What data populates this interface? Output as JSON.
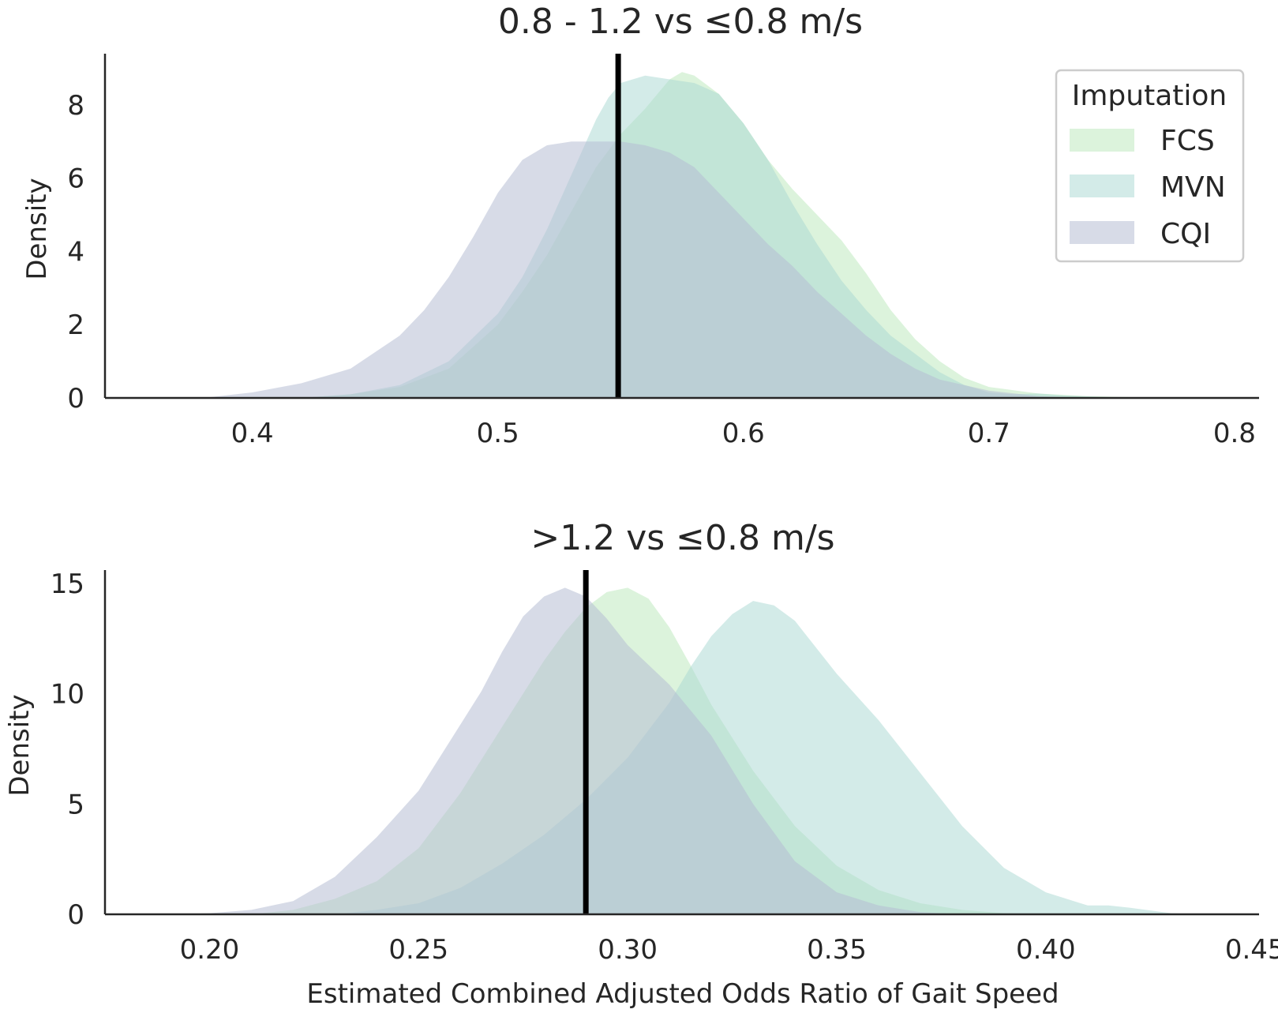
{
  "chart_data": [
    {
      "type": "area",
      "title": "0.8 - 1.2 vs ≤0.8 m/s",
      "xlabel": "",
      "ylabel": "Density",
      "xlim": [
        0.34,
        0.81
      ],
      "ylim": [
        0,
        9.4
      ],
      "xticks": [
        0.4,
        0.5,
        0.6,
        0.7,
        0.8
      ],
      "xtick_labels": [
        "0.4",
        "0.5",
        "0.6",
        "0.7",
        "0.8"
      ],
      "yticks": [
        0,
        2,
        4,
        6,
        8
      ],
      "ytick_labels": [
        "0",
        "2",
        "4",
        "6",
        "8"
      ],
      "reference_line_x": 0.549,
      "legend": {
        "title": "Imputation",
        "position": "top-right"
      },
      "series": [
        {
          "name": "FCS",
          "color": "#bfeabf",
          "opacity": 0.55,
          "x": [
            0.42,
            0.44,
            0.46,
            0.48,
            0.5,
            0.51,
            0.52,
            0.53,
            0.54,
            0.55,
            0.56,
            0.57,
            0.575,
            0.58,
            0.59,
            0.6,
            0.61,
            0.62,
            0.63,
            0.64,
            0.65,
            0.66,
            0.67,
            0.68,
            0.69,
            0.7,
            0.72,
            0.74,
            0.76,
            0.78
          ],
          "y": [
            0,
            0.1,
            0.3,
            0.8,
            2.0,
            2.9,
            3.9,
            5.1,
            6.3,
            7.2,
            7.9,
            8.7,
            8.9,
            8.8,
            8.3,
            7.5,
            6.5,
            5.7,
            5.0,
            4.3,
            3.4,
            2.4,
            1.6,
            1.0,
            0.55,
            0.3,
            0.12,
            0.05,
            0.02,
            0
          ]
        },
        {
          "name": "MVN",
          "color": "#a8d8d1",
          "opacity": 0.5,
          "x": [
            0.42,
            0.44,
            0.46,
            0.48,
            0.5,
            0.51,
            0.52,
            0.53,
            0.54,
            0.545,
            0.55,
            0.56,
            0.57,
            0.58,
            0.59,
            0.6,
            0.61,
            0.62,
            0.63,
            0.64,
            0.65,
            0.66,
            0.67,
            0.68,
            0.69,
            0.7,
            0.71,
            0.72,
            0.73,
            0.75,
            0.77
          ],
          "y": [
            0,
            0.1,
            0.35,
            1.0,
            2.3,
            3.3,
            4.6,
            6.1,
            7.6,
            8.2,
            8.6,
            8.8,
            8.7,
            8.6,
            8.3,
            7.5,
            6.5,
            5.3,
            4.2,
            3.2,
            2.4,
            1.7,
            1.2,
            0.7,
            0.35,
            0.15,
            0.1,
            0.12,
            0.07,
            0.02,
            0
          ]
        },
        {
          "name": "CQI",
          "color": "#b7bed4",
          "opacity": 0.55,
          "x": [
            0.38,
            0.4,
            0.42,
            0.44,
            0.46,
            0.47,
            0.48,
            0.49,
            0.5,
            0.51,
            0.52,
            0.53,
            0.54,
            0.55,
            0.56,
            0.57,
            0.58,
            0.59,
            0.6,
            0.61,
            0.62,
            0.63,
            0.64,
            0.65,
            0.66,
            0.67,
            0.68,
            0.7,
            0.72,
            0.74
          ],
          "y": [
            0,
            0.15,
            0.4,
            0.8,
            1.7,
            2.4,
            3.3,
            4.4,
            5.6,
            6.5,
            6.9,
            7.0,
            7.0,
            7.0,
            6.9,
            6.7,
            6.3,
            5.6,
            4.9,
            4.2,
            3.6,
            2.9,
            2.3,
            1.7,
            1.2,
            0.8,
            0.5,
            0.2,
            0.05,
            0
          ]
        }
      ]
    },
    {
      "type": "area",
      "title": ">1.2 vs ≤0.8 m/s",
      "xlabel": "Estimated Combined Adjusted Odds Ratio of Gait Speed",
      "ylabel": "Density",
      "xlim": [
        0.175,
        0.451
      ],
      "ylim": [
        0,
        15.6
      ],
      "xticks": [
        0.2,
        0.25,
        0.3,
        0.35,
        0.4,
        0.45
      ],
      "xtick_labels": [
        "0.20",
        "0.25",
        "0.30",
        "0.35",
        "0.40",
        "0.45"
      ],
      "yticks": [
        0,
        5,
        10,
        15
      ],
      "ytick_labels": [
        "0",
        "5",
        "10",
        "15"
      ],
      "reference_line_x": 0.29,
      "series": [
        {
          "name": "FCS",
          "color": "#bfeabf",
          "opacity": 0.55,
          "x": [
            0.21,
            0.22,
            0.23,
            0.24,
            0.25,
            0.26,
            0.265,
            0.27,
            0.275,
            0.28,
            0.285,
            0.29,
            0.295,
            0.3,
            0.305,
            0.31,
            0.315,
            0.32,
            0.33,
            0.34,
            0.35,
            0.36,
            0.37,
            0.38,
            0.39,
            0.4
          ],
          "y": [
            0,
            0.2,
            0.7,
            1.5,
            3.0,
            5.5,
            7.0,
            8.5,
            10.0,
            11.5,
            12.8,
            13.9,
            14.6,
            14.8,
            14.3,
            13.0,
            11.3,
            9.5,
            6.5,
            4.0,
            2.2,
            1.1,
            0.5,
            0.2,
            0.05,
            0
          ]
        },
        {
          "name": "MVN",
          "color": "#a8d8d1",
          "opacity": 0.5,
          "x": [
            0.23,
            0.24,
            0.25,
            0.26,
            0.27,
            0.28,
            0.29,
            0.3,
            0.31,
            0.315,
            0.32,
            0.325,
            0.33,
            0.335,
            0.34,
            0.35,
            0.36,
            0.37,
            0.38,
            0.39,
            0.4,
            0.41,
            0.415,
            0.42,
            0.43,
            0.44
          ],
          "y": [
            0,
            0.2,
            0.5,
            1.2,
            2.3,
            3.6,
            5.2,
            7.1,
            9.6,
            11.2,
            12.6,
            13.6,
            14.2,
            14.0,
            13.3,
            10.9,
            8.8,
            6.4,
            4.0,
            2.1,
            1.0,
            0.4,
            0.4,
            0.3,
            0.05,
            0
          ]
        },
        {
          "name": "CQI",
          "color": "#b7bed4",
          "opacity": 0.55,
          "x": [
            0.19,
            0.2,
            0.21,
            0.22,
            0.23,
            0.24,
            0.25,
            0.26,
            0.265,
            0.27,
            0.275,
            0.28,
            0.285,
            0.29,
            0.295,
            0.3,
            0.31,
            0.32,
            0.33,
            0.34,
            0.35,
            0.36,
            0.37,
            0.38
          ],
          "y": [
            0,
            0.05,
            0.2,
            0.6,
            1.7,
            3.5,
            5.6,
            8.6,
            10.1,
            11.9,
            13.5,
            14.4,
            14.8,
            14.4,
            13.4,
            12.2,
            10.4,
            8.1,
            5.0,
            2.4,
            1.0,
            0.4,
            0.1,
            0
          ]
        }
      ]
    }
  ]
}
